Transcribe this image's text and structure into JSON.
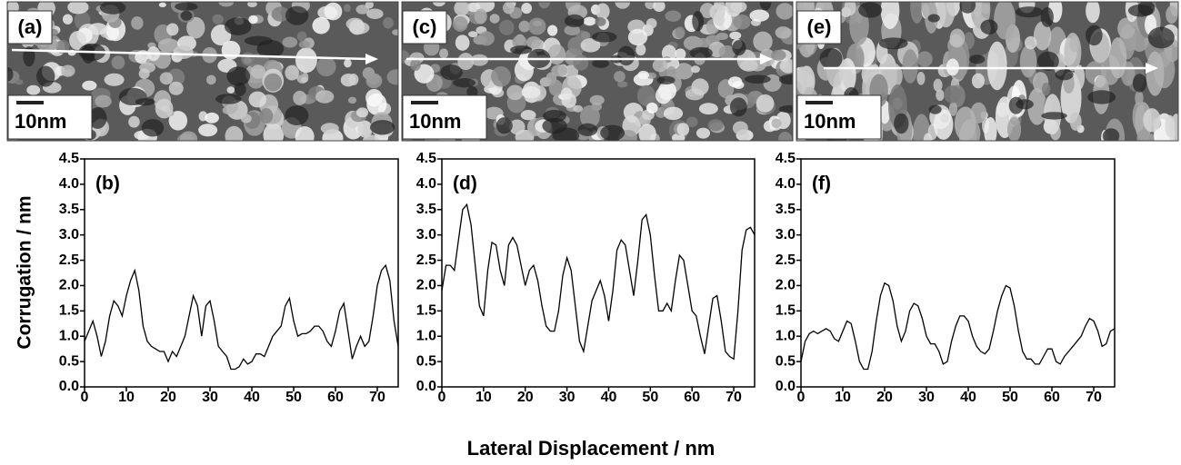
{
  "images": [
    {
      "label": "(a)",
      "scale_label": "10nm"
    },
    {
      "label": "(c)",
      "scale_label": "10nm"
    },
    {
      "label": "(e)",
      "scale_label": "10nm"
    }
  ],
  "shared_axes": {
    "y_label": "Corrugation / nm",
    "x_label": "Lateral Displacement / nm"
  },
  "chart_data": [
    {
      "type": "line",
      "panel_label": "(b)",
      "color": "#000000",
      "x": [
        0,
        1,
        2,
        3,
        4,
        5,
        6,
        7,
        8,
        9,
        10,
        11,
        12,
        13,
        14,
        15,
        16,
        17,
        18,
        19,
        20,
        21,
        22,
        23,
        24,
        25,
        26,
        27,
        28,
        29,
        30,
        31,
        32,
        33,
        34,
        35,
        36,
        37,
        38,
        39,
        40,
        41,
        42,
        43,
        44,
        45,
        46,
        47,
        48,
        49,
        50,
        51,
        52,
        53,
        54,
        55,
        56,
        57,
        58,
        59,
        60,
        61,
        62,
        63,
        64,
        65,
        66,
        67,
        68,
        69,
        70,
        71,
        72,
        73,
        74,
        75
      ],
      "values": [
        0.9,
        1.1,
        1.3,
        1.0,
        0.6,
        0.9,
        1.4,
        1.7,
        1.6,
        1.4,
        1.8,
        2.1,
        2.3,
        1.9,
        1.2,
        0.9,
        0.8,
        0.75,
        0.7,
        0.7,
        0.5,
        0.7,
        0.6,
        0.8,
        1.0,
        1.4,
        1.8,
        1.6,
        1.0,
        1.6,
        1.7,
        1.3,
        0.8,
        0.7,
        0.6,
        0.35,
        0.35,
        0.4,
        0.55,
        0.45,
        0.5,
        0.65,
        0.65,
        0.6,
        0.8,
        1.0,
        1.1,
        1.2,
        1.6,
        1.75,
        1.3,
        1.0,
        1.05,
        1.05,
        1.1,
        1.2,
        1.2,
        1.1,
        0.9,
        0.8,
        1.1,
        1.5,
        1.65,
        1.1,
        0.55,
        0.8,
        1.0,
        0.8,
        0.9,
        1.4,
        2.0,
        2.3,
        2.4,
        2.1,
        1.3,
        0.8
      ],
      "xlim": [
        0,
        75
      ],
      "ylim": [
        0,
        4.5
      ],
      "xticks": [
        0,
        10,
        20,
        30,
        40,
        50,
        60,
        70
      ],
      "yticks": [
        {
          "value": 0,
          "label": "0.0"
        },
        0.5,
        {
          "value": 1,
          "label": "1.0"
        },
        1.5,
        {
          "value": 2,
          "label": "2.0"
        },
        2.5,
        {
          "value": 3,
          "label": "3.0"
        },
        3.5,
        {
          "value": 4,
          "label": "4.0"
        },
        4.5
      ]
    },
    {
      "type": "line",
      "panel_label": "(d)",
      "color": "#000000",
      "x": [
        0,
        1,
        2,
        3,
        4,
        5,
        6,
        7,
        8,
        9,
        10,
        11,
        12,
        13,
        14,
        15,
        16,
        17,
        18,
        19,
        20,
        21,
        22,
        23,
        24,
        25,
        26,
        27,
        28,
        29,
        30,
        31,
        32,
        33,
        34,
        35,
        36,
        37,
        38,
        39,
        40,
        41,
        42,
        43,
        44,
        45,
        46,
        47,
        48,
        49,
        50,
        51,
        52,
        53,
        54,
        55,
        56,
        57,
        58,
        59,
        60,
        61,
        62,
        63,
        64,
        65,
        66,
        67,
        68,
        69,
        70,
        71,
        72,
        73,
        74,
        75
      ],
      "values": [
        1.9,
        2.4,
        2.4,
        2.3,
        2.9,
        3.5,
        3.6,
        3.2,
        2.4,
        1.6,
        1.4,
        2.3,
        2.85,
        2.8,
        2.3,
        2.0,
        2.8,
        2.95,
        2.8,
        2.4,
        2.0,
        2.3,
        2.4,
        2.1,
        1.6,
        1.2,
        1.1,
        1.1,
        1.5,
        2.2,
        2.55,
        2.3,
        1.6,
        0.9,
        0.7,
        1.2,
        1.7,
        1.9,
        2.1,
        1.8,
        1.3,
        1.9,
        2.7,
        2.9,
        2.8,
        2.3,
        1.8,
        2.5,
        3.3,
        3.4,
        3.0,
        2.2,
        1.5,
        1.5,
        1.65,
        1.5,
        2.1,
        2.6,
        2.5,
        2.0,
        1.5,
        1.4,
        1.0,
        0.65,
        1.2,
        1.75,
        1.8,
        1.3,
        0.7,
        0.6,
        0.55,
        1.5,
        2.7,
        3.1,
        3.15,
        3.0
      ],
      "xlim": [
        0,
        75
      ],
      "ylim": [
        0,
        4.5
      ],
      "xticks": [
        0,
        10,
        20,
        30,
        40,
        50,
        60,
        70
      ],
      "yticks": [
        {
          "value": 0,
          "label": "0.0"
        },
        0.5,
        {
          "value": 1,
          "label": "1.0"
        },
        1.5,
        {
          "value": 2,
          "label": "2.0"
        },
        2.5,
        {
          "value": 3,
          "label": "3.0"
        },
        3.5,
        {
          "value": 4,
          "label": "4.0"
        },
        4.5
      ]
    },
    {
      "type": "line",
      "panel_label": "(f)",
      "color": "#000000",
      "x": [
        0,
        1,
        2,
        3,
        4,
        5,
        6,
        7,
        8,
        9,
        10,
        11,
        12,
        13,
        14,
        15,
        16,
        17,
        18,
        19,
        20,
        21,
        22,
        23,
        24,
        25,
        26,
        27,
        28,
        29,
        30,
        31,
        32,
        33,
        34,
        35,
        36,
        37,
        38,
        39,
        40,
        41,
        42,
        43,
        44,
        45,
        46,
        47,
        48,
        49,
        50,
        51,
        52,
        53,
        54,
        55,
        56,
        57,
        58,
        59,
        60,
        61,
        62,
        63,
        64,
        65,
        66,
        67,
        68,
        69,
        70,
        71,
        72,
        73,
        74,
        75
      ],
      "values": [
        0.5,
        0.9,
        1.05,
        1.1,
        1.05,
        1.1,
        1.15,
        1.1,
        0.95,
        0.9,
        1.1,
        1.3,
        1.25,
        0.9,
        0.5,
        0.35,
        0.35,
        0.7,
        1.3,
        1.8,
        2.05,
        2.0,
        1.7,
        1.2,
        0.9,
        1.1,
        1.5,
        1.65,
        1.6,
        1.35,
        1.0,
        0.85,
        0.85,
        0.7,
        0.45,
        0.5,
        0.9,
        1.2,
        1.4,
        1.4,
        1.3,
        1.0,
        0.8,
        0.7,
        0.65,
        0.75,
        1.1,
        1.5,
        1.8,
        2.0,
        1.95,
        1.6,
        1.1,
        0.7,
        0.55,
        0.55,
        0.45,
        0.45,
        0.6,
        0.75,
        0.75,
        0.5,
        0.45,
        0.6,
        0.7,
        0.8,
        0.9,
        1.0,
        1.2,
        1.35,
        1.3,
        1.1,
        0.8,
        0.85,
        1.1,
        1.15
      ],
      "xlim": [
        0,
        75
      ],
      "ylim": [
        0,
        4.5
      ],
      "xticks": [
        0,
        10,
        20,
        30,
        40,
        50,
        60,
        70
      ],
      "yticks": [
        {
          "value": 0,
          "label": "0.0"
        },
        0.5,
        {
          "value": 1,
          "label": "1.0"
        },
        1.5,
        {
          "value": 2,
          "label": "2.0"
        },
        2.5,
        {
          "value": 3,
          "label": "3.0"
        },
        3.5,
        {
          "value": 4,
          "label": "4.0"
        },
        4.5
      ]
    }
  ]
}
